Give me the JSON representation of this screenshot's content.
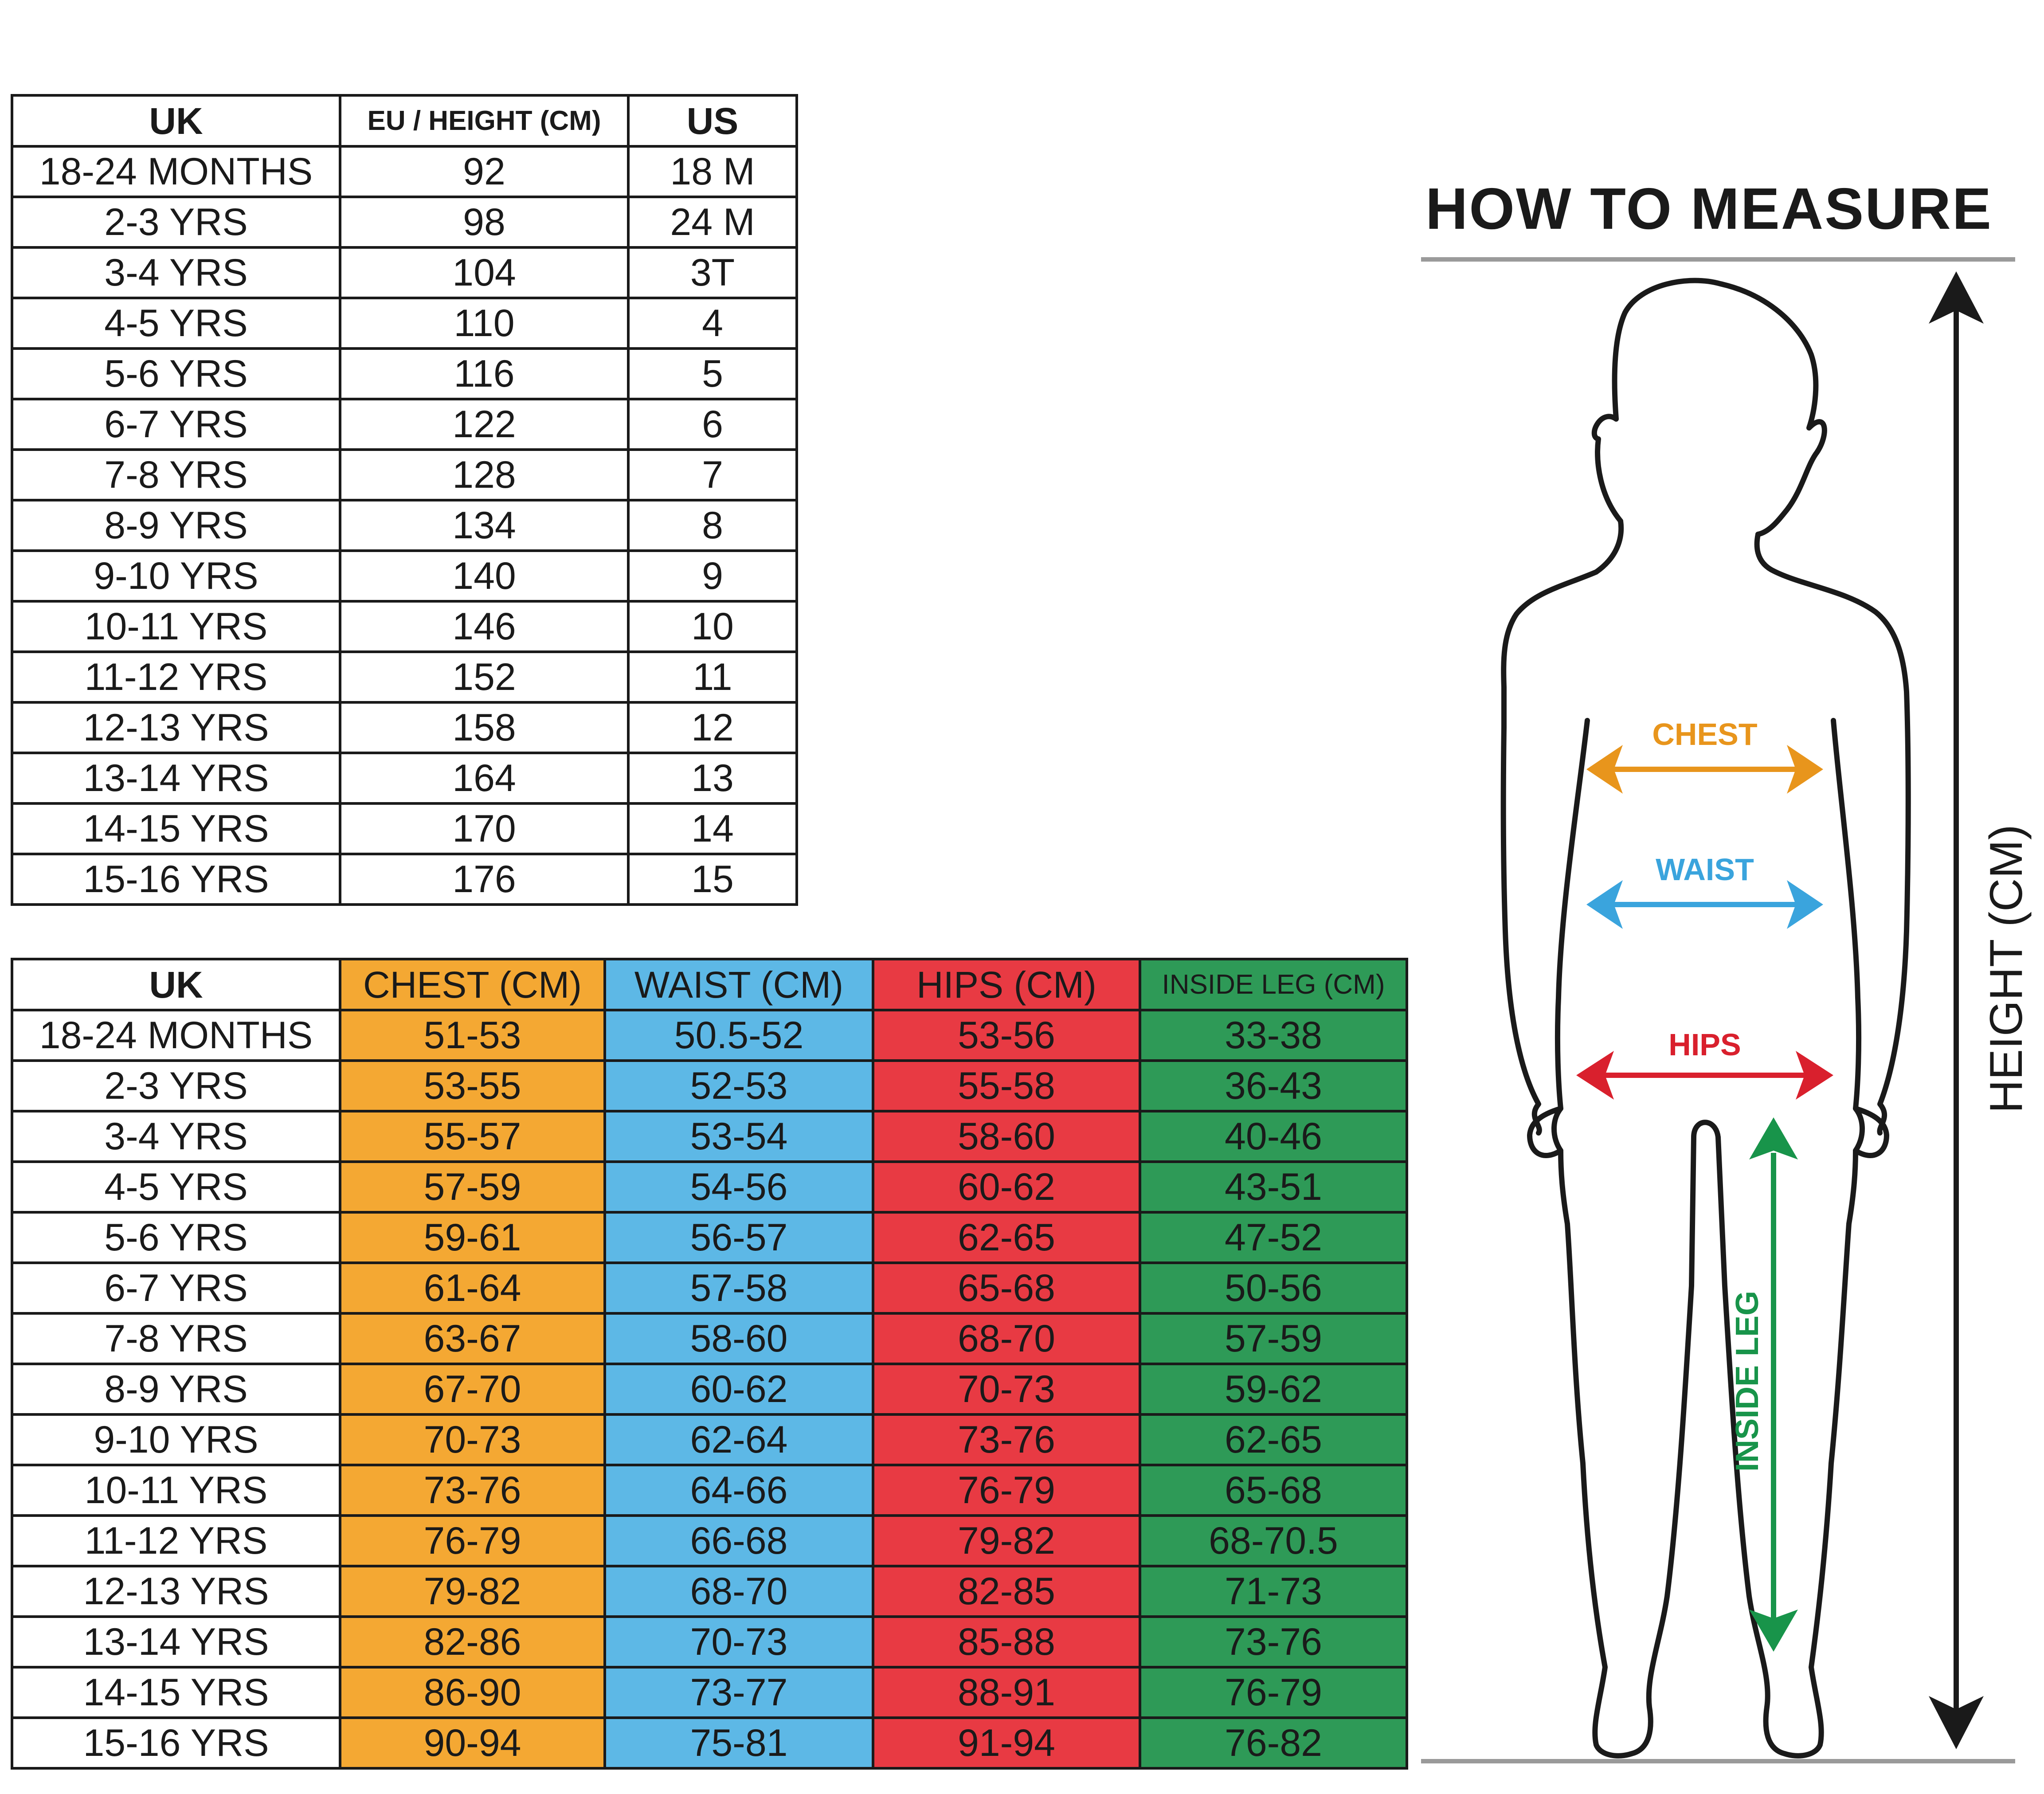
{
  "size_table": {
    "headers": [
      "UK",
      "EU / HEIGHT (CM)",
      "US"
    ],
    "rows": [
      [
        "18-24 MONTHS",
        "92",
        "18 M"
      ],
      [
        "2-3 YRS",
        "98",
        "24 M"
      ],
      [
        "3-4 YRS",
        "104",
        "3T"
      ],
      [
        "4-5 YRS",
        "110",
        "4"
      ],
      [
        "5-6 YRS",
        "116",
        "5"
      ],
      [
        "6-7 YRS",
        "122",
        "6"
      ],
      [
        "7-8 YRS",
        "128",
        "7"
      ],
      [
        "8-9 YRS",
        "134",
        "8"
      ],
      [
        "9-10 YRS",
        "140",
        "9"
      ],
      [
        "10-11 YRS",
        "146",
        "10"
      ],
      [
        "11-12 YRS",
        "152",
        "11"
      ],
      [
        "12-13 YRS",
        "158",
        "12"
      ],
      [
        "13-14 YRS",
        "164",
        "13"
      ],
      [
        "14-15 YRS",
        "170",
        "14"
      ],
      [
        "15-16 YRS",
        "176",
        "15"
      ]
    ]
  },
  "measure_table": {
    "headers": [
      "UK",
      "CHEST (CM)",
      "WAIST (CM)",
      "HIPS (CM)",
      "INSIDE LEG (CM)"
    ],
    "rows": [
      [
        "18-24 MONTHS",
        "51-53",
        "50.5-52",
        "53-56",
        "33-38"
      ],
      [
        "2-3 YRS",
        "53-55",
        "52-53",
        "55-58",
        "36-43"
      ],
      [
        "3-4 YRS",
        "55-57",
        "53-54",
        "58-60",
        "40-46"
      ],
      [
        "4-5 YRS",
        "57-59",
        "54-56",
        "60-62",
        "43-51"
      ],
      [
        "5-6 YRS",
        "59-61",
        "56-57",
        "62-65",
        "47-52"
      ],
      [
        "6-7 YRS",
        "61-64",
        "57-58",
        "65-68",
        "50-56"
      ],
      [
        "7-8 YRS",
        "63-67",
        "58-60",
        "68-70",
        "57-59"
      ],
      [
        "8-9 YRS",
        "67-70",
        "60-62",
        "70-73",
        "59-62"
      ],
      [
        "9-10 YRS",
        "70-73",
        "62-64",
        "73-76",
        "62-65"
      ],
      [
        "10-11 YRS",
        "73-76",
        "64-66",
        "76-79",
        "65-68"
      ],
      [
        "11-12 YRS",
        "76-79",
        "66-68",
        "79-82",
        "68-70.5"
      ],
      [
        "12-13 YRS",
        "79-82",
        "68-70",
        "82-85",
        "71-73"
      ],
      [
        "13-14 YRS",
        "82-86",
        "70-73",
        "85-88",
        "73-76"
      ],
      [
        "14-15 YRS",
        "86-90",
        "73-77",
        "88-91",
        "76-79"
      ],
      [
        "15-16 YRS",
        "90-94",
        "75-81",
        "91-94",
        "76-82"
      ]
    ]
  },
  "how_to_measure": {
    "title": "HOW TO MEASURE",
    "labels": {
      "chest": "CHEST",
      "waist": "WAIST",
      "hips": "HIPS",
      "inside_leg": "INSIDE LEG",
      "height": "HEIGHT (CM)"
    }
  },
  "colors": {
    "chest": "#f4a833",
    "waist": "#5db8e6",
    "hips": "#e83a43",
    "inside_leg": "#2e9a57",
    "chest_arrow": "#e8951c",
    "waist_arrow": "#3aa4dd",
    "hips_arrow": "#d9202d",
    "leg_arrow": "#18944a",
    "guide_line": "#9a9a9a",
    "ink": "#1a1a1a"
  }
}
